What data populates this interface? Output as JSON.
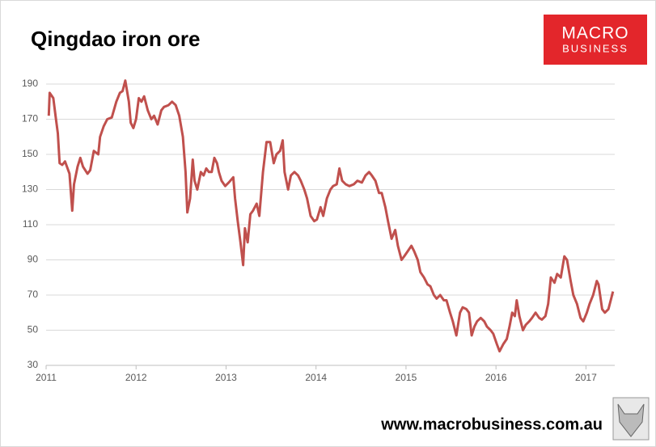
{
  "chart_data": {
    "type": "line",
    "title": "Qingdao iron ore",
    "logo": {
      "top": "MACRO",
      "bottom": "BUSINESS"
    },
    "footer": "www.macrobusiness.com.au",
    "xlim": [
      2011,
      2017.32
    ],
    "xticks": [
      2011,
      2012,
      2013,
      2014,
      2015,
      2016,
      2017
    ],
    "ylim": [
      30,
      190
    ],
    "yticks": [
      30,
      50,
      70,
      90,
      110,
      130,
      150,
      170,
      190
    ],
    "grid": true,
    "x": [
      2011.03,
      2011.04,
      2011.08,
      2011.11,
      2011.13,
      2011.15,
      2011.18,
      2011.21,
      2011.26,
      2011.29,
      2011.31,
      2011.35,
      2011.38,
      2011.41,
      2011.46,
      2011.49,
      2011.53,
      2011.58,
      2011.6,
      2011.64,
      2011.68,
      2011.73,
      2011.78,
      2011.82,
      2011.85,
      2011.88,
      2011.92,
      2011.94,
      2011.97,
      2012.0,
      2012.03,
      2012.06,
      2012.09,
      2012.13,
      2012.17,
      2012.2,
      2012.24,
      2012.28,
      2012.31,
      2012.36,
      2012.4,
      2012.44,
      2012.48,
      2012.52,
      2012.55,
      2012.57,
      2012.6,
      2012.63,
      2012.65,
      2012.68,
      2012.72,
      2012.75,
      2012.78,
      2012.81,
      2012.84,
      2012.87,
      2012.9,
      2012.92,
      2012.95,
      2012.99,
      2013.03,
      2013.08,
      2013.1,
      2013.13,
      2013.16,
      2013.19,
      2013.21,
      2013.24,
      2013.27,
      2013.3,
      2013.34,
      2013.37,
      2013.41,
      2013.45,
      2013.49,
      2013.53,
      2013.56,
      2013.6,
      2013.63,
      2013.65,
      2013.69,
      2013.72,
      2013.76,
      2013.8,
      2013.83,
      2013.87,
      2013.9,
      2013.94,
      2013.98,
      2014.01,
      2014.05,
      2014.08,
      2014.12,
      2014.16,
      2014.19,
      2014.23,
      2014.26,
      2014.29,
      2014.33,
      2014.37,
      2014.42,
      2014.46,
      2014.51,
      2014.55,
      2014.59,
      2014.62,
      2014.66,
      2014.7,
      2014.73,
      2014.77,
      2014.8,
      2014.84,
      2014.88,
      2014.91,
      2014.95,
      2014.98,
      2015.02,
      2015.06,
      2015.09,
      2015.13,
      2015.16,
      2015.2,
      2015.24,
      2015.27,
      2015.31,
      2015.34,
      2015.38,
      2015.42,
      2015.45,
      2015.49,
      2015.52,
      2015.56,
      2015.6,
      2015.63,
      2015.67,
      2015.7,
      2015.73,
      2015.76,
      2015.79,
      2015.83,
      2015.87,
      2015.9,
      2015.94,
      2015.97,
      2016.01,
      2016.04,
      2016.08,
      2016.12,
      2016.15,
      2016.18,
      2016.21,
      2016.23,
      2016.26,
      2016.3,
      2016.33,
      2016.37,
      2016.4,
      2016.44,
      2016.48,
      2016.51,
      2016.55,
      2016.58,
      2016.61,
      2016.65,
      2016.68,
      2016.72,
      2016.76,
      2016.79,
      2016.83,
      2016.86,
      2016.9,
      2016.94,
      2016.97,
      2017.01,
      2017.04,
      2017.08,
      2017.12,
      2017.14,
      2017.18,
      2017.21,
      2017.25,
      2017.28,
      2017.3
    ],
    "series": [
      {
        "name": "Qingdao iron ore",
        "color": "#c0504d",
        "values": [
          172,
          185,
          182,
          170,
          162,
          145,
          144,
          146,
          139,
          118,
          133,
          143,
          148,
          143,
          139,
          141,
          152,
          150,
          160,
          166,
          170,
          171,
          180,
          185,
          186,
          192,
          180,
          168,
          165,
          170,
          182,
          180,
          183,
          175,
          170,
          172,
          167,
          175,
          177,
          178,
          180,
          178,
          172,
          160,
          140,
          117,
          125,
          147,
          135,
          130,
          140,
          138,
          142,
          140,
          140,
          148,
          145,
          140,
          135,
          132,
          134,
          137,
          125,
          112,
          100,
          87,
          108,
          100,
          116,
          118,
          122,
          115,
          140,
          157,
          157,
          145,
          150,
          152,
          158,
          140,
          130,
          138,
          140,
          138,
          135,
          130,
          125,
          115,
          112,
          113,
          120,
          115,
          125,
          130,
          132,
          133,
          142,
          135,
          133,
          132,
          133,
          135,
          134,
          138,
          140,
          138,
          135,
          128,
          128,
          120,
          112,
          102,
          107,
          98,
          90,
          92,
          95,
          98,
          95,
          90,
          83,
          80,
          76,
          75,
          70,
          68,
          70,
          67,
          67,
          60,
          55,
          47,
          60,
          63,
          62,
          60,
          47,
          52,
          55,
          57,
          55,
          52,
          50,
          48,
          42,
          38,
          42,
          45,
          52,
          60,
          58,
          67,
          58,
          50,
          53,
          55,
          57,
          60,
          57,
          56,
          58,
          65,
          80,
          77,
          82,
          80,
          92,
          90,
          78,
          70,
          65,
          57,
          55,
          60,
          65,
          70,
          78,
          76,
          62,
          60,
          62,
          68,
          72
        ]
      }
    ]
  }
}
